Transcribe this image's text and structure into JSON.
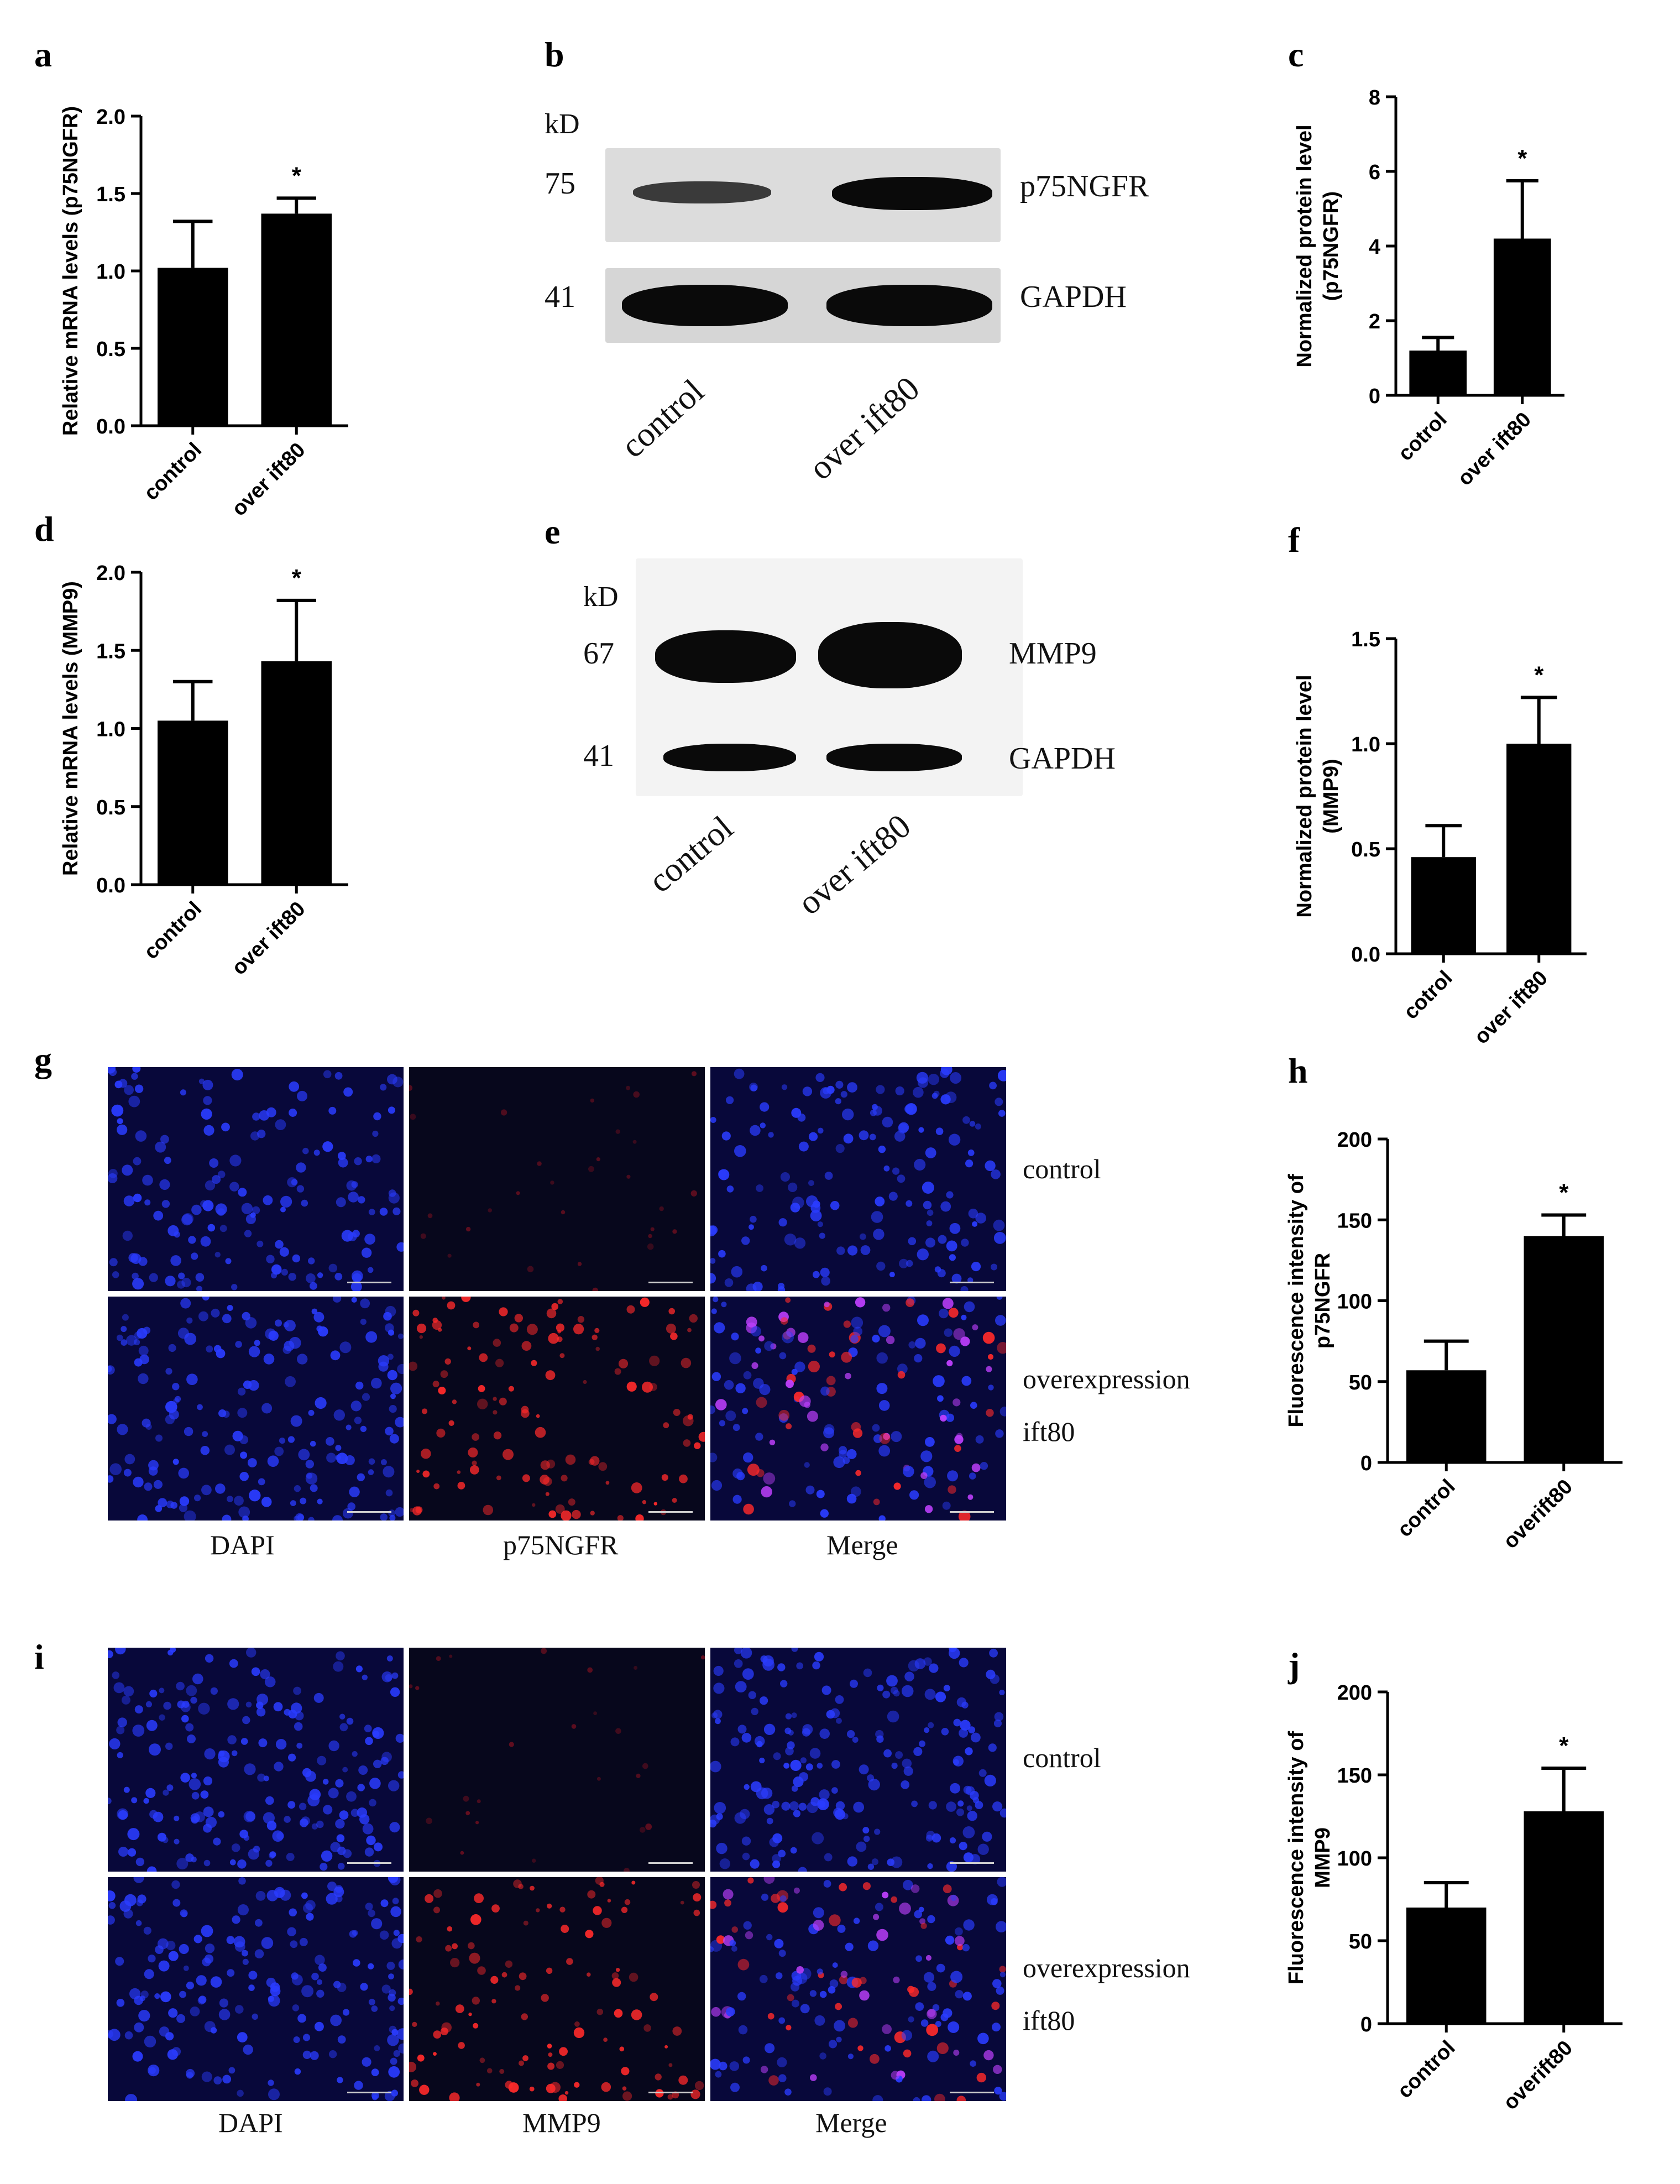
{
  "colors": {
    "bar": "#000000",
    "axis": "#000000",
    "dapi": "#2a3cff",
    "red": "#ff2a2a",
    "merge": "#c040ff"
  },
  "panels": {
    "a": "a",
    "b": "b",
    "c": "c",
    "d": "d",
    "e": "e",
    "f": "f",
    "g": "g",
    "h": "h",
    "i": "i",
    "j": "j"
  },
  "chart_data": [
    {
      "id": "a",
      "type": "bar",
      "ylabel": "Relative mRNA levels (p75NGFR)",
      "categories": [
        "control",
        "over ift80"
      ],
      "values": [
        1.02,
        1.37
      ],
      "errors": [
        0.3,
        0.1
      ],
      "ylim": [
        0,
        2.0
      ],
      "yticks": [
        "0.0",
        "0.5",
        "1.0",
        "1.5",
        "2.0"
      ],
      "sig": [
        "",
        "*"
      ]
    },
    {
      "id": "c",
      "type": "bar",
      "ylabel": "Normalized protein level (p75NGFR)",
      "ylabel_lines": [
        "Normalized protein level",
        "(p75NGFR)"
      ],
      "categories": [
        "cotrol",
        "over ift80"
      ],
      "values": [
        1.2,
        4.2
      ],
      "errors": [
        0.35,
        1.55
      ],
      "ylim": [
        0,
        8
      ],
      "yticks": [
        "0",
        "2",
        "4",
        "6",
        "8"
      ],
      "sig": [
        "",
        "*"
      ]
    },
    {
      "id": "d",
      "type": "bar",
      "ylabel": "Relative mRNA levels (MMP9)",
      "categories": [
        "control",
        "over ift80"
      ],
      "values": [
        1.05,
        1.43
      ],
      "errors": [
        0.25,
        0.39
      ],
      "ylim": [
        0,
        2.0
      ],
      "yticks": [
        "0.0",
        "0.5",
        "1.0",
        "1.5",
        "2.0"
      ],
      "sig": [
        "",
        "*"
      ]
    },
    {
      "id": "f",
      "type": "bar",
      "ylabel": "Normalized protein level (MMP9)",
      "ylabel_lines": [
        "Normalized protein level",
        "(MMP9)"
      ],
      "categories": [
        "cotrol",
        "over ift80"
      ],
      "values": [
        0.46,
        1.0
      ],
      "errors": [
        0.15,
        0.22
      ],
      "ylim": [
        0,
        1.5
      ],
      "yticks": [
        "0.0",
        "0.5",
        "1.0",
        "1.5"
      ],
      "sig": [
        "",
        "*"
      ]
    },
    {
      "id": "h",
      "type": "bar",
      "ylabel": "Fluorescence intensity of p75NGFR",
      "ylabel_lines": [
        "Fluorescence intensity of",
        "p75NGFR"
      ],
      "categories": [
        "control",
        "overift80"
      ],
      "values": [
        57,
        140
      ],
      "errors": [
        18,
        13
      ],
      "ylim": [
        0,
        200
      ],
      "yticks": [
        "0",
        "50",
        "100",
        "150",
        "200"
      ],
      "sig": [
        "",
        "*"
      ]
    },
    {
      "id": "j",
      "type": "bar",
      "ylabel": "Fluorescence intensity of MMP9",
      "ylabel_lines": [
        "Fluorescence intensity of",
        "MMP9"
      ],
      "categories": [
        "control",
        "overift80"
      ],
      "values": [
        70,
        128
      ],
      "errors": [
        15,
        26
      ],
      "ylim": [
        0,
        200
      ],
      "yticks": [
        "0",
        "50",
        "100",
        "150",
        "200"
      ],
      "sig": [
        "",
        "*"
      ]
    }
  ],
  "blot_b": {
    "kd": "kD",
    "mw": [
      "75",
      "41"
    ],
    "proteins": [
      "p75NGFR",
      "GAPDH"
    ],
    "lanes": [
      "control",
      "over ift80"
    ]
  },
  "blot_e": {
    "kd": "kD",
    "mw": [
      "67",
      "41"
    ],
    "proteins": [
      "MMP9",
      "GAPDH"
    ],
    "lanes": [
      "control",
      "over ift80"
    ]
  },
  "fluor_g": {
    "columns": [
      "DAPI",
      "p75NGFR",
      "Merge"
    ],
    "rows": [
      "control",
      "overexpression",
      "ift80"
    ]
  },
  "fluor_i": {
    "columns": [
      "DAPI",
      "MMP9",
      "Merge"
    ],
    "rows": [
      "control",
      "overexpression",
      "ift80"
    ]
  }
}
